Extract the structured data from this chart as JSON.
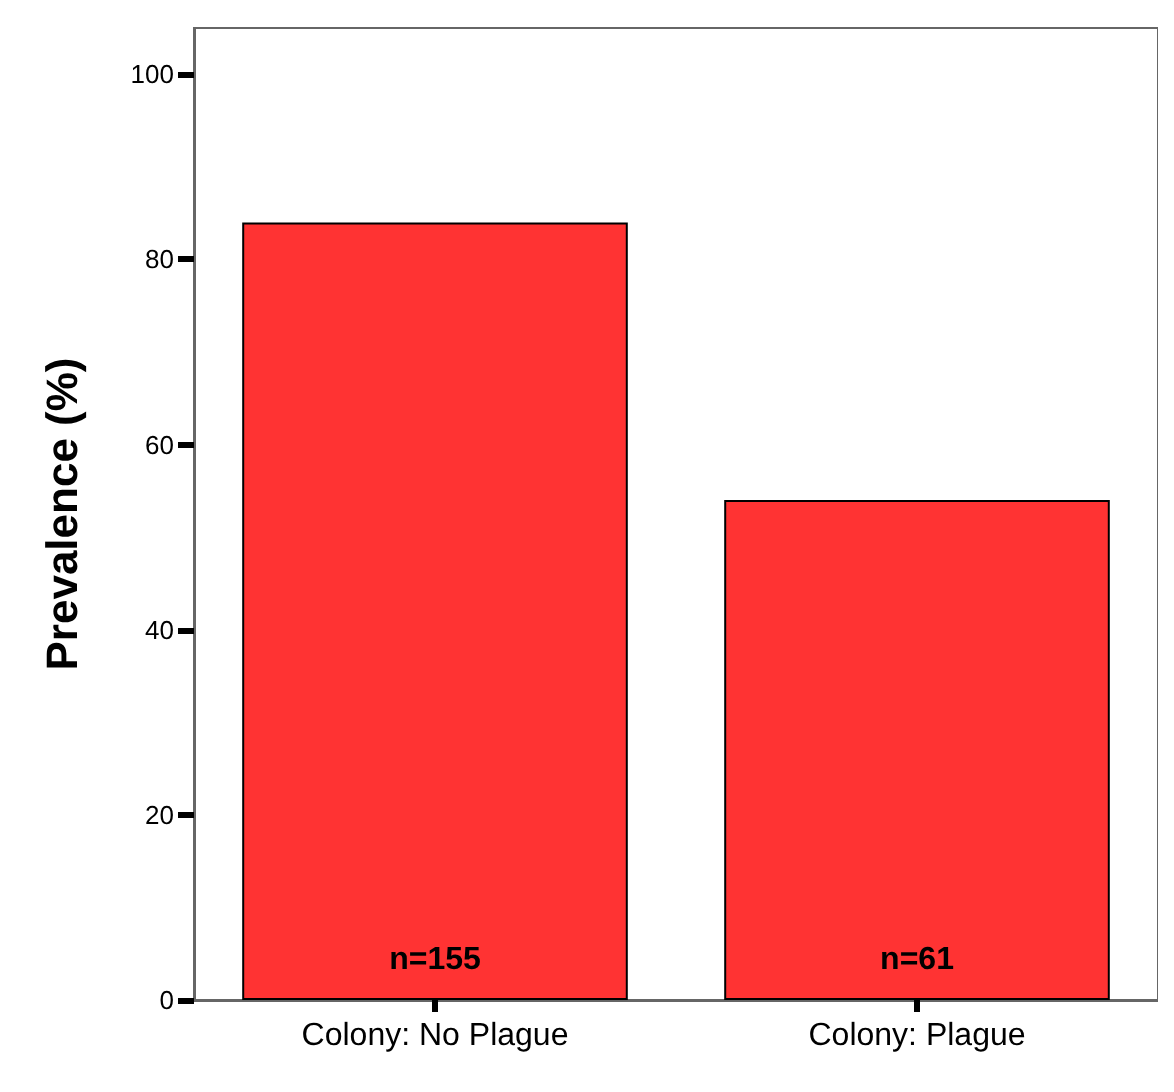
{
  "chart_data": {
    "type": "bar",
    "ylabel": "Prevalence (%)",
    "categories": [
      "Colony: No Plague",
      "Colony: Plague"
    ],
    "values": [
      84,
      54
    ],
    "color": "#ff3333",
    "ylim": [
      0,
      105
    ],
    "yticks": [
      0,
      20,
      40,
      60,
      80,
      100
    ],
    "grid": false,
    "annotations": [
      "n=155",
      "n=61"
    ]
  }
}
